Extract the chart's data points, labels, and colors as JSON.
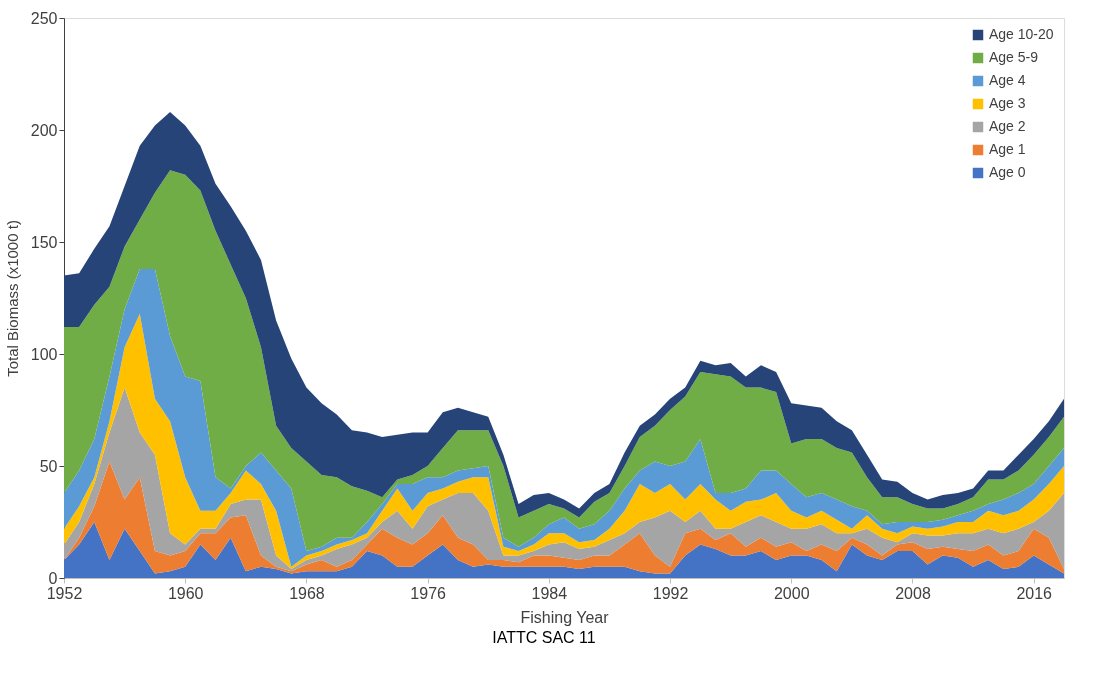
{
  "chart_data": {
    "type": "area",
    "stacked": true,
    "xlabel": "Fishing Year",
    "ylabel": "Total Biomass (x1000 t)",
    "annotations": [
      "IATTC  SAC  11"
    ],
    "x": [
      1952,
      1953,
      1954,
      1955,
      1956,
      1957,
      1958,
      1959,
      1960,
      1961,
      1962,
      1963,
      1964,
      1965,
      1966,
      1967,
      1968,
      1969,
      1970,
      1971,
      1972,
      1973,
      1974,
      1975,
      1976,
      1977,
      1978,
      1979,
      1980,
      1981,
      1982,
      1983,
      1984,
      1985,
      1986,
      1987,
      1988,
      1989,
      1990,
      1991,
      1992,
      1993,
      1994,
      1995,
      1996,
      1997,
      1998,
      1999,
      2000,
      2001,
      2002,
      2003,
      2004,
      2005,
      2006,
      2007,
      2008,
      2009,
      2010,
      2011,
      2012,
      2013,
      2014,
      2015,
      2016,
      2017,
      2018
    ],
    "xlim": [
      1952,
      2018
    ],
    "xticks": [
      1952,
      1960,
      1968,
      1976,
      1984,
      1992,
      2000,
      2008,
      2016
    ],
    "ylim": [
      0,
      250
    ],
    "yticks": [
      0,
      50,
      100,
      150,
      200,
      250
    ],
    "grid": false,
    "legend": "top right",
    "series": [
      {
        "name": "Age 0",
        "color": "#4472c4",
        "values": [
          8,
          15,
          25,
          8,
          22,
          12,
          2,
          3,
          5,
          15,
          8,
          18,
          3,
          5,
          4,
          2,
          3,
          3,
          3,
          5,
          12,
          10,
          5,
          5,
          10,
          15,
          8,
          5,
          6,
          5,
          5,
          5,
          5,
          5,
          4,
          5,
          5,
          5,
          3,
          2,
          2,
          10,
          15,
          13,
          10,
          10,
          12,
          8,
          10,
          10,
          8,
          3,
          15,
          10,
          8,
          12,
          12,
          6,
          10,
          9,
          5,
          8,
          4,
          5,
          10,
          6,
          2
        ]
      },
      {
        "name": "Age 1",
        "color": "#ed7d31",
        "values": [
          0,
          3,
          7,
          44,
          13,
          33,
          10,
          7,
          7,
          5,
          12,
          9,
          25,
          5,
          1,
          1,
          3,
          5,
          2,
          3,
          3,
          12,
          13,
          10,
          10,
          13,
          10,
          10,
          2,
          3,
          2,
          5,
          5,
          4,
          4,
          5,
          5,
          10,
          17,
          8,
          3,
          10,
          7,
          4,
          10,
          4,
          6,
          6,
          6,
          2,
          7,
          9,
          3,
          5,
          2,
          3,
          4,
          7,
          4,
          4,
          7,
          7,
          6,
          7,
          12,
          12,
          2
        ]
      },
      {
        "name": "Age 2",
        "color": "#a5a5a5",
        "values": [
          7,
          7,
          10,
          13,
          50,
          20,
          43,
          10,
          3,
          2,
          2,
          6,
          7,
          25,
          5,
          1,
          2,
          2,
          8,
          7,
          3,
          3,
          12,
          7,
          12,
          7,
          20,
          23,
          22,
          2,
          3,
          2,
          5,
          7,
          5,
          4,
          7,
          5,
          5,
          17,
          25,
          5,
          8,
          5,
          2,
          11,
          10,
          11,
          6,
          10,
          9,
          8,
          2,
          7,
          8,
          1,
          4,
          6,
          5,
          7,
          8,
          7,
          10,
          10,
          3,
          12,
          34
        ]
      },
      {
        "name": "Age 3",
        "color": "#ffc000",
        "values": [
          7,
          7,
          3,
          5,
          18,
          53,
          25,
          50,
          30,
          8,
          8,
          5,
          13,
          7,
          20,
          1,
          2,
          2,
          2,
          2,
          2,
          5,
          10,
          8,
          6,
          5,
          5,
          7,
          15,
          4,
          2,
          3,
          5,
          4,
          3,
          3,
          5,
          10,
          17,
          11,
          12,
          10,
          12,
          13,
          8,
          9,
          7,
          13,
          8,
          5,
          6,
          6,
          2,
          6,
          4,
          4,
          3,
          3,
          4,
          5,
          5,
          8,
          8,
          8,
          10,
          12,
          12
        ]
      },
      {
        "name": "Age 4",
        "color": "#5b9bd5",
        "values": [
          16,
          16,
          17,
          20,
          17,
          20,
          58,
          38,
          45,
          58,
          15,
          2,
          2,
          14,
          18,
          35,
          2,
          2,
          3,
          1,
          5,
          3,
          2,
          12,
          7,
          5,
          5,
          4,
          5,
          4,
          2,
          3,
          4,
          7,
          6,
          7,
          8,
          10,
          6,
          14,
          8,
          17,
          20,
          3,
          8,
          6,
          13,
          10,
          12,
          9,
          8,
          9,
          10,
          2,
          2,
          5,
          2,
          3,
          3,
          3,
          5,
          3,
          7,
          8,
          7,
          8,
          8
        ]
      },
      {
        "name": "Age 5-9",
        "color": "#70ad47",
        "values": [
          74,
          64,
          60,
          40,
          28,
          22,
          34,
          74,
          90,
          85,
          110,
          100,
          75,
          47,
          20,
          18,
          40,
          32,
          27,
          23,
          14,
          3,
          2,
          4,
          5,
          13,
          18,
          17,
          16,
          32,
          13,
          12,
          9,
          4,
          5,
          10,
          8,
          10,
          15,
          16,
          25,
          29,
          30,
          53,
          52,
          45,
          37,
          35,
          18,
          26,
          24,
          23,
          24,
          15,
          12,
          11,
          8,
          6,
          5,
          5,
          6,
          11,
          9,
          10,
          13,
          13,
          14
        ]
      },
      {
        "name": "Age 10-20",
        "color": "#264478",
        "values": [
          23,
          24,
          25,
          27,
          27,
          33,
          30,
          26,
          22,
          20,
          21,
          26,
          30,
          39,
          47,
          40,
          33,
          32,
          28,
          25,
          26,
          27,
          20,
          19,
          15,
          16,
          10,
          8,
          6,
          5,
          6,
          7,
          5,
          4,
          4,
          4,
          4,
          6,
          5,
          5,
          5,
          4,
          5,
          4,
          6,
          5,
          10,
          9,
          18,
          15,
          14,
          12,
          10,
          10,
          8,
          7,
          5,
          4,
          6,
          5,
          4,
          4,
          4,
          7,
          7,
          7,
          8
        ]
      }
    ]
  }
}
